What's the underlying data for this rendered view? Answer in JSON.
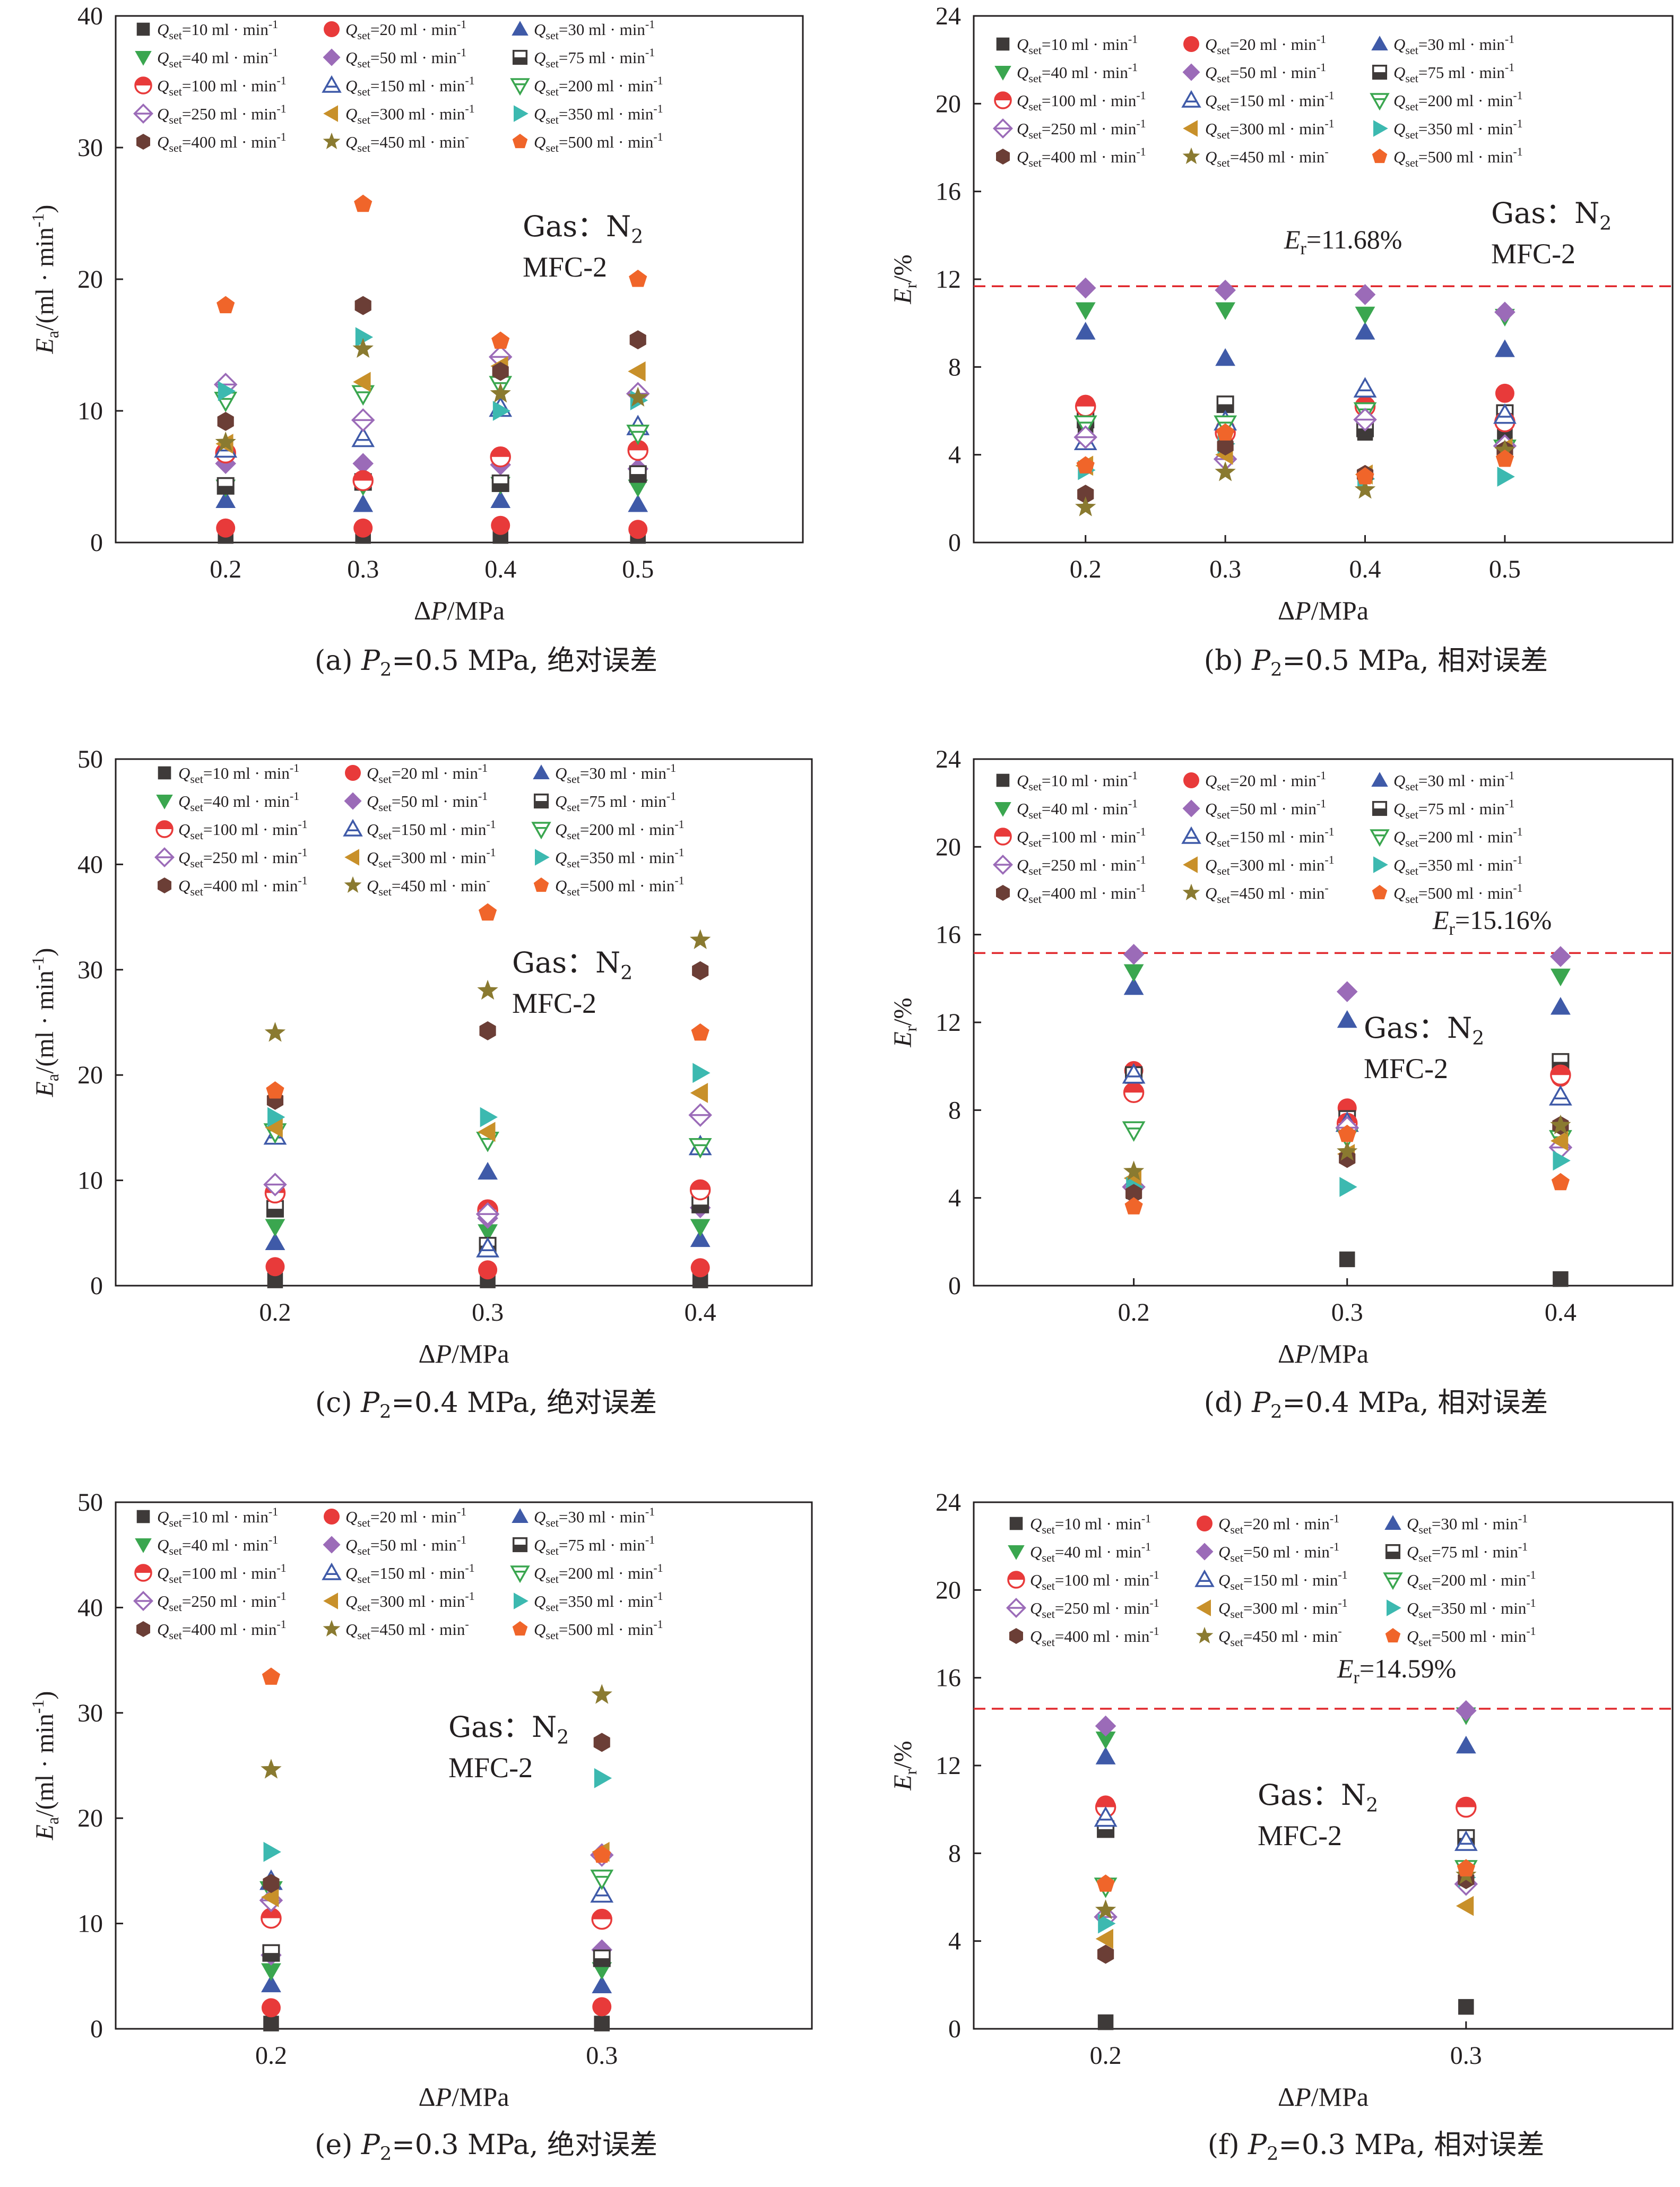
{
  "figure": {
    "legend_labels": [
      "Qset=10 ml·min-1",
      "Qset=20 ml·min-1",
      "Qset=30 ml·min-1",
      "Qset=40 ml·min-1",
      "Qset=50 ml·min-1",
      "Qset=75 ml·min-1",
      "Qset=100 ml·min-1",
      "Qset=150 ml·min-1",
      "Qset=200 ml·min-1",
      "Qset=250 ml·min-1",
      "Qset=300 ml·min-1",
      "Qset=350 ml·min-1",
      "Qset=400 ml·min-1",
      "Qset=450 ml·min-",
      "Qset=500 ml·min-1"
    ],
    "series_colors": [
      "#3e3a39",
      "#e83a3a",
      "#3f5aa8",
      "#3aa64f",
      "#9b6bb8",
      "#3e3a39",
      "#e83a3a",
      "#3f5aa8",
      "#3aa64f",
      "#9b6bb8",
      "#c8902a",
      "#3cb9b0",
      "#6b3e36",
      "#8a7a30",
      "#f0652a"
    ],
    "series_markers": [
      "square",
      "circle",
      "triangle-up",
      "triangle-down",
      "diamond",
      "half-square",
      "half-circle",
      "open-triangle-up",
      "open-triangle-down",
      "half-diamond",
      "triangle-left",
      "triangle-right",
      "hexagon",
      "star",
      "pentagon"
    ],
    "gas_label": "Gas：N",
    "gas_sub": "2",
    "device_label": "MFC-2",
    "threshold_color": "#e0282d"
  },
  "chart_data": [
    {
      "id": "a",
      "type": "scatter",
      "caption": "(a) P2=0.5 MPa, 绝对误差",
      "xlabel": "ΔP/MPa",
      "ylabel": "Ea/(ml · min-1)",
      "x_ticks": [
        "0.2",
        "0.3",
        "0.4",
        "0.5"
      ],
      "x_values": [
        0.2,
        0.3,
        0.4,
        0.5
      ],
      "xlim": [
        0.12,
        0.62
      ],
      "ylim": [
        0,
        40
      ],
      "y_ticks": [
        0,
        10,
        20,
        30,
        40
      ],
      "threshold": null,
      "series": [
        {
          "name": "Qset=10 ml·min-1",
          "values": [
            0.5,
            0.5,
            0.5,
            0.5
          ]
        },
        {
          "name": "Qset=20 ml·min-1",
          "values": [
            1.1,
            1.1,
            1.3,
            1.0
          ]
        },
        {
          "name": "Qset=30 ml·min-1",
          "values": [
            3.2,
            2.9,
            3.2,
            2.9
          ]
        },
        {
          "name": "Qset=40 ml·min-1",
          "values": [
            4.2,
            4.3,
            4.4,
            4.2
          ]
        },
        {
          "name": "Qset=50 ml·min-1",
          "values": [
            6.0,
            6.0,
            5.9,
            5.6
          ]
        },
        {
          "name": "Qset=75 ml·min-1",
          "values": [
            4.3,
            4.6,
            4.5,
            5.2
          ]
        },
        {
          "name": "Qset=100 ml·min-1",
          "values": [
            6.8,
            4.7,
            6.5,
            7.0
          ]
        },
        {
          "name": "Qset=150 ml·min-1",
          "values": [
            7.1,
            7.9,
            10.2,
            8.8
          ]
        },
        {
          "name": "Qset=200 ml·min-1",
          "values": [
            10.8,
            11.3,
            12.0,
            8.3
          ]
        },
        {
          "name": "Qset=250 ml·min-1",
          "values": [
            12.0,
            9.3,
            14.1,
            11.3
          ]
        },
        {
          "name": "Qset=300 ml·min-1",
          "values": [
            7.5,
            12.2,
            13.4,
            13.0
          ]
        },
        {
          "name": "Qset=350 ml·min-1",
          "values": [
            11.5,
            15.6,
            10.0,
            10.8
          ]
        },
        {
          "name": "Qset=400 ml·min-1",
          "values": [
            9.2,
            18.0,
            13.0,
            15.4
          ]
        },
        {
          "name": "Qset=450 ml·min-",
          "values": [
            7.6,
            14.7,
            11.3,
            11.0
          ]
        },
        {
          "name": "Qset=500 ml·min-1",
          "values": [
            18.0,
            25.7,
            15.3,
            20.0
          ]
        }
      ]
    },
    {
      "id": "b",
      "type": "scatter",
      "caption": "(b) P2=0.5 MPa, 相对误差",
      "xlabel": "ΔP/MPa",
      "ylabel": "Er/%",
      "x_ticks": [
        "0.2",
        "0.3",
        "0.4",
        "0.5"
      ],
      "x_values": [
        0.2,
        0.3,
        0.4,
        0.5
      ],
      "xlim": [
        0.12,
        0.62
      ],
      "ylim": [
        0,
        24
      ],
      "y_ticks": [
        0,
        4,
        8,
        12,
        16,
        20,
        24
      ],
      "threshold": 11.68,
      "threshold_label": "Er=11.68%",
      "series": [
        {
          "name": "Qset=10 ml·min-1",
          "values": [
            5.0,
            5.0,
            5.0,
            5.0
          ]
        },
        {
          "name": "Qset=20 ml·min-1",
          "values": [
            6.3,
            5.2,
            6.2,
            6.8
          ]
        },
        {
          "name": "Qset=30 ml·min-1",
          "values": [
            9.6,
            8.4,
            9.6,
            8.8
          ]
        },
        {
          "name": "Qset=40 ml·min-1",
          "values": [
            10.6,
            10.6,
            10.4,
            10.3
          ]
        },
        {
          "name": "Qset=50 ml·min-1",
          "values": [
            11.6,
            11.5,
            11.3,
            10.5
          ]
        },
        {
          "name": "Qset=75 ml·min-1",
          "values": [
            5.6,
            6.3,
            5.2,
            5.9
          ]
        },
        {
          "name": "Qset=100 ml·min-1",
          "values": [
            6.2,
            5.0,
            6.2,
            5.5
          ]
        },
        {
          "name": "Qset=150 ml·min-1",
          "values": [
            4.6,
            5.5,
            7.0,
            5.8
          ]
        },
        {
          "name": "Qset=200 ml·min-1",
          "values": [
            5.4,
            5.4,
            6.0,
            4.3
          ]
        },
        {
          "name": "Qset=250 ml·min-1",
          "values": [
            4.8,
            3.8,
            5.6,
            4.4
          ]
        },
        {
          "name": "Qset=300 ml·min-1",
          "values": [
            3.5,
            4.0,
            3.1,
            4.3
          ]
        },
        {
          "name": "Qset=350 ml·min-1",
          "values": [
            3.3,
            4.5,
            2.9,
            3.0
          ]
        },
        {
          "name": "Qset=400 ml·min-1",
          "values": [
            2.2,
            4.4,
            3.1,
            4.2
          ]
        },
        {
          "name": "Qset=450 ml·min-",
          "values": [
            1.6,
            3.2,
            2.4,
            4.2
          ]
        },
        {
          "name": "Qset=500 ml·min-1",
          "values": [
            3.5,
            5.0,
            3.0,
            3.8
          ]
        }
      ]
    },
    {
      "id": "c",
      "type": "scatter",
      "caption": "(c) P2=0.4 MPa, 绝对误差",
      "xlabel": "ΔP/MPa",
      "ylabel": "Ea/(ml · min-1)",
      "x_ticks": [
        "0.2",
        "0.3",
        "0.4"
      ],
      "x_values": [
        0.2,
        0.3,
        0.4
      ],
      "xlim": [
        0.125,
        0.4525
      ],
      "ylim": [
        0,
        50
      ],
      "y_ticks": [
        0,
        10,
        20,
        30,
        40,
        50
      ],
      "threshold": null,
      "series": [
        {
          "name": "Qset=10 ml·min-1",
          "values": [
            0.5,
            0.5,
            0.5
          ]
        },
        {
          "name": "Qset=20 ml·min-1",
          "values": [
            1.8,
            1.5,
            1.7
          ]
        },
        {
          "name": "Qset=30 ml·min-1",
          "values": [
            4.1,
            10.8,
            4.4
          ]
        },
        {
          "name": "Qset=40 ml·min-1",
          "values": [
            5.6,
            5.1,
            5.6
          ]
        },
        {
          "name": "Qset=50 ml·min-1",
          "values": [
            9.7,
            6.4,
            7.4
          ]
        },
        {
          "name": "Qset=75 ml·min-1",
          "values": [
            7.3,
            3.8,
            7.7
          ]
        },
        {
          "name": "Qset=100 ml·min-1",
          "values": [
            8.8,
            7.2,
            9.1
          ]
        },
        {
          "name": "Qset=150 ml·min-1",
          "values": [
            14.2,
            3.5,
            13.2
          ]
        },
        {
          "name": "Qset=200 ml·min-1",
          "values": [
            14.6,
            13.8,
            13.2
          ]
        },
        {
          "name": "Qset=250 ml·min-1",
          "values": [
            9.6,
            6.8,
            16.2
          ]
        },
        {
          "name": "Qset=300 ml·min-1",
          "values": [
            15.0,
            14.6,
            18.3
          ]
        },
        {
          "name": "Qset=350 ml·min-1",
          "values": [
            16.0,
            16.0,
            20.2
          ]
        },
        {
          "name": "Qset=400 ml·min-1",
          "values": [
            17.6,
            24.2,
            29.9
          ]
        },
        {
          "name": "Qset=450 ml·min-",
          "values": [
            24.0,
            28.0,
            32.8
          ]
        },
        {
          "name": "Qset=500 ml·min-1",
          "values": [
            18.5,
            35.4,
            24.0
          ]
        }
      ]
    },
    {
      "id": "d",
      "type": "scatter",
      "caption": "(d) P2=0.4 MPa, 相对误差",
      "xlabel": "ΔP/MPa",
      "ylabel": "Er/%",
      "x_ticks": [
        "0.2",
        "0.3",
        "0.4"
      ],
      "x_values": [
        0.2,
        0.3,
        0.4
      ],
      "xlim": [
        0.125,
        0.4525
      ],
      "ylim": [
        0,
        24
      ],
      "y_ticks": [
        0,
        4,
        8,
        12,
        16,
        20,
        24
      ],
      "threshold": 15.16,
      "threshold_label": "Er=15.16%",
      "series": [
        {
          "name": "Qset=10 ml·min-1",
          "values": [
            4.3,
            1.2,
            0.3
          ]
        },
        {
          "name": "Qset=20 ml·min-1",
          "values": [
            9.8,
            8.1,
            9.5
          ]
        },
        {
          "name": "Qset=30 ml·min-1",
          "values": [
            13.6,
            12.1,
            12.7
          ]
        },
        {
          "name": "Qset=40 ml·min-1",
          "values": [
            14.3,
            6.8,
            14.1
          ]
        },
        {
          "name": "Qset=50 ml·min-1",
          "values": [
            15.1,
            13.4,
            15.0
          ]
        },
        {
          "name": "Qset=75 ml·min-1",
          "values": [
            9.6,
            7.6,
            10.2
          ]
        },
        {
          "name": "Qset=100 ml·min-1",
          "values": [
            8.8,
            7.4,
            9.6
          ]
        },
        {
          "name": "Qset=150 ml·min-1",
          "values": [
            9.6,
            7.4,
            8.6
          ]
        },
        {
          "name": "Qset=200 ml·min-1",
          "values": [
            7.1,
            6.8,
            6.7
          ]
        },
        {
          "name": "Qset=250 ml·min-1",
          "values": [
            4.5,
            7.2,
            6.3
          ]
        },
        {
          "name": "Qset=300 ml·min-1",
          "values": [
            4.9,
            6.0,
            6.6
          ]
        },
        {
          "name": "Qset=350 ml·min-1",
          "values": [
            4.5,
            4.5,
            5.7
          ]
        },
        {
          "name": "Qset=400 ml·min-1",
          "values": [
            4.2,
            5.8,
            7.3
          ]
        },
        {
          "name": "Qset=450 ml·min-",
          "values": [
            5.2,
            6.1,
            7.3
          ]
        },
        {
          "name": "Qset=500 ml·min-1",
          "values": [
            3.6,
            6.9,
            4.7
          ]
        }
      ]
    },
    {
      "id": "e",
      "type": "scatter",
      "caption": "(e) P2=0.3 MPa, 绝对误差",
      "xlabel": "ΔP/MPa",
      "ylabel": "Ea/(ml · min-1)",
      "x_ticks": [
        "0.2",
        "0.3"
      ],
      "x_values": [
        0.2,
        0.3
      ],
      "xlim": [
        0.153,
        0.3635
      ],
      "ylim": [
        0,
        50
      ],
      "y_ticks": [
        0,
        10,
        20,
        30,
        40,
        50
      ],
      "threshold": null,
      "series": [
        {
          "name": "Qset=10 ml·min-1",
          "values": [
            0.5,
            0.5
          ]
        },
        {
          "name": "Qset=20 ml·min-1",
          "values": [
            2.0,
            2.1
          ]
        },
        {
          "name": "Qset=30 ml·min-1",
          "values": [
            4.2,
            4.1
          ]
        },
        {
          "name": "Qset=40 ml·min-1",
          "values": [
            5.5,
            5.6
          ]
        },
        {
          "name": "Qset=50 ml·min-1",
          "values": [
            7.0,
            7.5
          ]
        },
        {
          "name": "Qset=75 ml·min-1",
          "values": [
            7.2,
            6.7
          ]
        },
        {
          "name": "Qset=100 ml·min-1",
          "values": [
            10.5,
            10.4
          ]
        },
        {
          "name": "Qset=150 ml·min-1",
          "values": [
            14.0,
            12.8
          ]
        },
        {
          "name": "Qset=200 ml·min-1",
          "values": [
            13.2,
            14.3
          ]
        },
        {
          "name": "Qset=250 ml·min-1",
          "values": [
            12.2,
            16.5
          ]
        },
        {
          "name": "Qset=300 ml·min-1",
          "values": [
            12.5,
            16.8
          ]
        },
        {
          "name": "Qset=350 ml·min-1",
          "values": [
            16.8,
            23.8
          ]
        },
        {
          "name": "Qset=400 ml·min-1",
          "values": [
            13.8,
            27.2
          ]
        },
        {
          "name": "Qset=450 ml·min-",
          "values": [
            24.6,
            31.7
          ]
        },
        {
          "name": "Qset=500 ml·min-1",
          "values": [
            33.4,
            16.5
          ]
        }
      ]
    },
    {
      "id": "f",
      "type": "scatter",
      "caption": "(f) P2=0.3 MPa, 相对误差",
      "xlabel": "ΔP/MPa",
      "ylabel": "Er/%",
      "x_ticks": [
        "0.2",
        "0.3"
      ],
      "x_values": [
        0.2,
        0.3
      ],
      "xlim": [
        0.1634,
        0.3573
      ],
      "ylim": [
        0,
        24
      ],
      "y_ticks": [
        0,
        4,
        8,
        12,
        16,
        20,
        24
      ],
      "threshold": 14.59,
      "threshold_label": "Er=14.59%",
      "series": [
        {
          "name": "Qset=10 ml·min-1",
          "values": [
            0.3,
            1.0
          ]
        },
        {
          "name": "Qset=20 ml·min-1",
          "values": [
            10.2,
            10.1
          ]
        },
        {
          "name": "Qset=30 ml·min-1",
          "values": [
            12.4,
            12.9
          ]
        },
        {
          "name": "Qset=40 ml·min-1",
          "values": [
            13.2,
            14.3
          ]
        },
        {
          "name": "Qset=50 ml·min-1",
          "values": [
            13.8,
            14.5
          ]
        },
        {
          "name": "Qset=75 ml·min-1",
          "values": [
            9.1,
            8.7
          ]
        },
        {
          "name": "Qset=100 ml·min-1",
          "values": [
            10.1,
            10.1
          ]
        },
        {
          "name": "Qset=150 ml·min-1",
          "values": [
            9.6,
            8.5
          ]
        },
        {
          "name": "Qset=200 ml·min-1",
          "values": [
            6.5,
            7.3
          ]
        },
        {
          "name": "Qset=250 ml·min-1",
          "values": [
            5.1,
            6.6
          ]
        },
        {
          "name": "Qset=300 ml·min-1",
          "values": [
            4.1,
            5.6
          ]
        },
        {
          "name": "Qset=350 ml·min-1",
          "values": [
            4.8,
            6.9
          ]
        },
        {
          "name": "Qset=400 ml·min-1",
          "values": [
            3.4,
            6.8
          ]
        },
        {
          "name": "Qset=450 ml·min-",
          "values": [
            5.4,
            7.0
          ]
        },
        {
          "name": "Qset=500 ml·min-1",
          "values": [
            6.6,
            7.3
          ]
        }
      ]
    }
  ]
}
